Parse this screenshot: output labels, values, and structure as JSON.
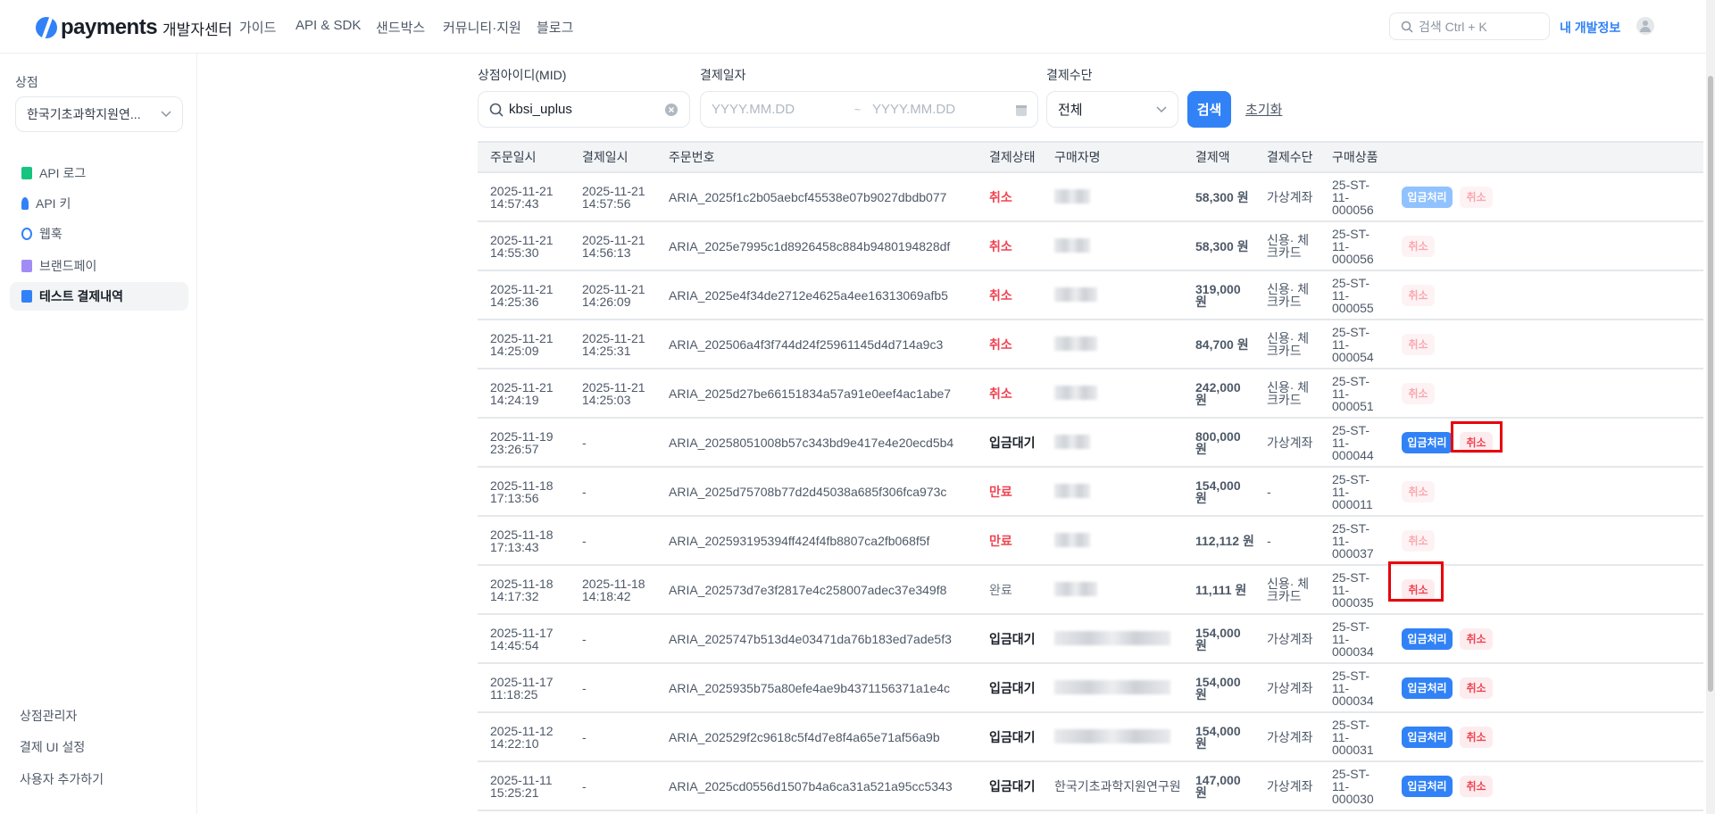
{
  "header": {
    "logo_word": "payments",
    "logo_sub": "개발자센터",
    "nav": [
      "가이드",
      "API & SDK",
      "샌드박스",
      "커뮤니티·지원",
      "블로그"
    ],
    "search_placeholder": "검색 Ctrl + K",
    "my_dev": "내 개발정보"
  },
  "sidebar": {
    "store_label": "상점",
    "store_select": "한국기초과학지원연...",
    "items": [
      {
        "label": "API 로그",
        "icon": "sheet-icon",
        "color": "#15c47e"
      },
      {
        "label": "API 키",
        "icon": "key-icon",
        "color": "#3182f6"
      },
      {
        "label": "웹훅",
        "icon": "refresh-icon",
        "color": "#3182f6"
      },
      {
        "label": "브랜드페이",
        "icon": "card-icon",
        "color": "#a18cf5"
      },
      {
        "label": "테스트 결제내역",
        "icon": "receipt-icon",
        "color": "#3182f6",
        "active": true
      }
    ],
    "bottom": [
      "상점관리자",
      "결제 UI 설정",
      "사용자 추가하기"
    ]
  },
  "filters": {
    "mid_label": "상점아이디(MID)",
    "mid_value": "kbsi_uplus",
    "date_label": "결제일자",
    "date_from_placeholder": "YYYY.MM.DD",
    "date_sep": "~",
    "date_to_placeholder": "YYYY.MM.DD",
    "method_label": "결제수단",
    "method_value": "전체",
    "search_btn": "검색",
    "reset_btn": "초기화"
  },
  "table": {
    "columns": [
      "주문일시",
      "결제일시",
      "주문번호",
      "결제상태",
      "구매자명",
      "결제액",
      "결제수단",
      "구매상품",
      ""
    ],
    "deposit_label": "입금처리",
    "cancel_label": "취소",
    "rows": [
      {
        "order_date": "2025-11-21 14:57:43",
        "pay_date": "2025-11-21 14:57:56",
        "order_no": "ARIA_2025f1c2b05aebcf45538e07b9027dbdb077",
        "status": "취소",
        "buyer": "",
        "amount": "58,300 원",
        "method": "가상계좌",
        "product": "25-ST- 11- 000056",
        "deposit": "disabled",
        "cancel": "disabled"
      },
      {
        "order_date": "2025-11-21 14:55:30",
        "pay_date": "2025-11-21 14:56:13",
        "order_no": "ARIA_2025e7995c1d8926458c884b9480194828df",
        "status": "취소",
        "buyer": "",
        "amount": "58,300 원",
        "method": "신용· 체크카드",
        "product": "25-ST- 11- 000056",
        "deposit": "none",
        "cancel": "disabled"
      },
      {
        "order_date": "2025-11-21 14:25:36",
        "pay_date": "2025-11-21 14:26:09",
        "order_no": "ARIA_2025e4f34de2712e4625a4ee16313069afb5",
        "status": "취소",
        "buyer": "",
        "amount": "319,000 원",
        "method": "신용· 체크카드",
        "product": "25-ST- 11- 000055",
        "deposit": "none",
        "cancel": "disabled"
      },
      {
        "order_date": "2025-11-21 14:25:09",
        "pay_date": "2025-11-21 14:25:31",
        "order_no": "ARIA_202506a4f3f744d24f25961145d4d714a9c3",
        "status": "취소",
        "buyer": "",
        "amount": "84,700 원",
        "method": "신용· 체크카드",
        "product": "25-ST- 11- 000054",
        "deposit": "none",
        "cancel": "disabled"
      },
      {
        "order_date": "2025-11-21 14:24:19",
        "pay_date": "2025-11-21 14:25:03",
        "order_no": "ARIA_2025d27be66151834a57a91e0eef4ac1abe7",
        "status": "취소",
        "buyer": "",
        "amount": "242,000 원",
        "method": "신용· 체크카드",
        "product": "25-ST- 11- 000051",
        "deposit": "none",
        "cancel": "disabled"
      },
      {
        "order_date": "2025-11-19 23:26:57",
        "pay_date": "-",
        "order_no": "ARIA_20258051008b57c343bd9e417e4e20ecd5b4",
        "status": "입금대기",
        "buyer": "",
        "amount": "800,000 원",
        "method": "가상계좌",
        "product": "25-ST- 11- 000044",
        "deposit": "enabled",
        "cancel": "enabled",
        "highlight": true
      },
      {
        "order_date": "2025-11-18 17:13:56",
        "pay_date": "-",
        "order_no": "ARIA_2025d75708b77d2d45038a685f306fca973c",
        "status": "만료",
        "buyer": "",
        "amount": "154,000 원",
        "method": "-",
        "product": "25-ST- 11- 000011",
        "deposit": "none",
        "cancel": "disabled"
      },
      {
        "order_date": "2025-11-18 17:13:43",
        "pay_date": "-",
        "order_no": "ARIA_202593195394ff424f4fb8807ca2fb068f5f",
        "status": "만료",
        "buyer": "",
        "amount": "112,112 원",
        "method": "-",
        "product": "25-ST- 11- 000037",
        "deposit": "none",
        "cancel": "disabled"
      },
      {
        "order_date": "2025-11-18 14:17:32",
        "pay_date": "2025-11-18 14:18:42",
        "order_no": "ARIA_202573d7e3f2817e4c258007adec37e349f8",
        "status": "완료",
        "buyer": "",
        "amount": "11,111 원",
        "method": "신용· 체크카드",
        "product": "25-ST- 11- 000035",
        "deposit": "none",
        "cancel": "enabled",
        "highlight": true
      },
      {
        "order_date": "2025-11-17 14:45:54",
        "pay_date": "-",
        "order_no": "ARIA_2025747b513d4e03471da76b183ed7ade5f3",
        "status": "입금대기",
        "buyer": "",
        "amount": "154,000 원",
        "method": "가상계좌",
        "product": "25-ST- 11- 000034",
        "deposit": "enabled",
        "cancel": "enabled"
      },
      {
        "order_date": "2025-11-17 11:18:25",
        "pay_date": "-",
        "order_no": "ARIA_2025935b75a80efe4ae9b4371156371a1e4c",
        "status": "입금대기",
        "buyer": "",
        "amount": "154,000 원",
        "method": "가상계좌",
        "product": "25-ST- 11- 000034",
        "deposit": "enabled",
        "cancel": "enabled"
      },
      {
        "order_date": "2025-11-12 14:22:10",
        "pay_date": "-",
        "order_no": "ARIA_202529f2c9618c5f4d7e8f4a65e71af56a9b",
        "status": "입금대기",
        "buyer": "",
        "amount": "154,000 원",
        "method": "가상계좌",
        "product": "25-ST- 11- 000031",
        "deposit": "enabled",
        "cancel": "enabled"
      },
      {
        "order_date": "2025-11-11 15:25:21",
        "pay_date": "-",
        "order_no": "ARIA_2025cd0556d1507b4a6ca31a521a95cc5343",
        "status": "입금대기",
        "buyer": "한국기초과학지원연구원",
        "amount": "147,000 원",
        "method": "가상계좌",
        "product": "25-ST- 11- 000030",
        "deposit": "enabled",
        "cancel": "enabled"
      }
    ]
  }
}
